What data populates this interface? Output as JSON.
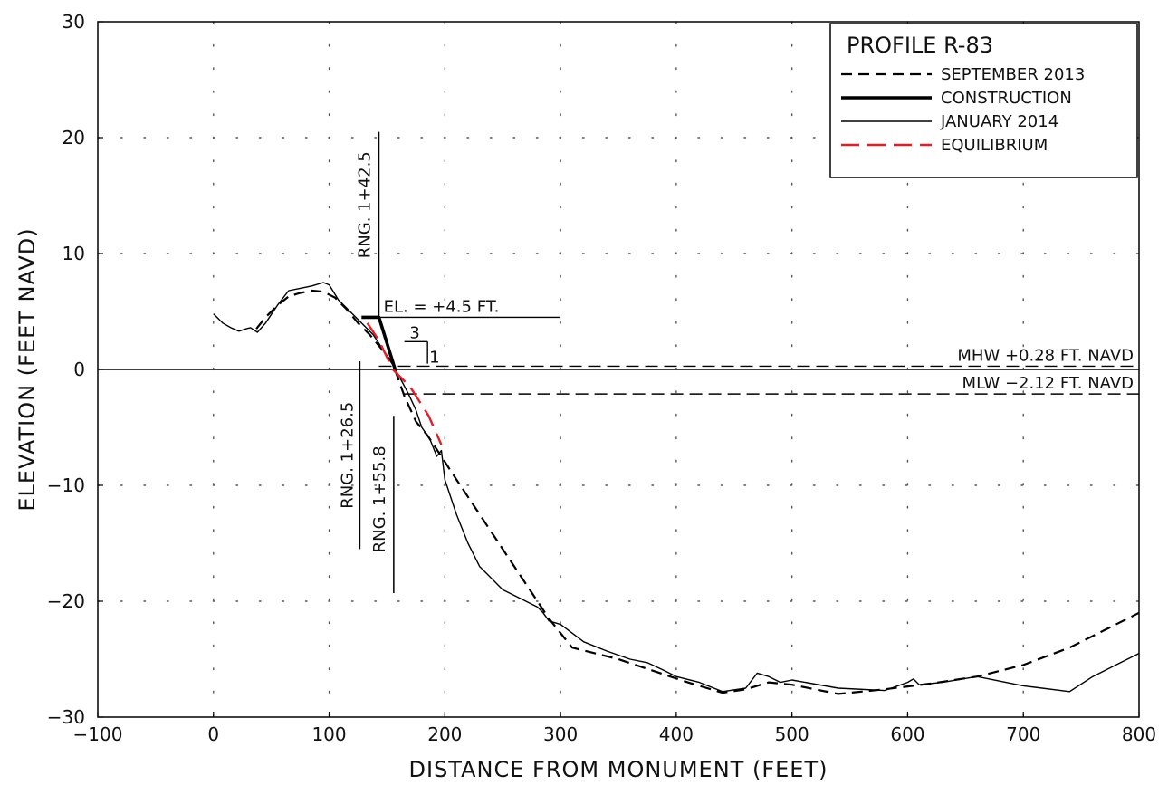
{
  "chart_data": {
    "type": "line",
    "title": "PROFILE R-83",
    "xlabel": "DISTANCE FROM MONUMENT (FEET)",
    "ylabel": "ELEVATION (FEET NAVD)",
    "xlim": [
      -100,
      800
    ],
    "ylim": [
      -30,
      30
    ],
    "xticks": [
      -100,
      0,
      100,
      200,
      300,
      400,
      500,
      600,
      700,
      800
    ],
    "yticks": [
      -30,
      -20,
      -10,
      0,
      10,
      20,
      30
    ],
    "xtick_labels": [
      "−100",
      "0",
      "100",
      "200",
      "300",
      "400",
      "500",
      "600",
      "700",
      "800"
    ],
    "ytick_labels": [
      "−30",
      "−20",
      "−10",
      "0",
      "10",
      "20",
      "30"
    ],
    "grid": "dotted",
    "legend_position": "top-right",
    "series": [
      {
        "name": "SEPTEMBER 2013",
        "color": "#000000",
        "style": "dashed",
        "x": [
          37,
          45,
          55,
          65,
          75,
          85,
          95,
          105,
          115,
          125,
          135,
          145,
          155,
          165,
          175,
          185,
          195,
          210,
          230,
          250,
          270,
          290,
          310,
          330,
          350,
          380,
          410,
          440,
          460,
          480,
          500,
          540,
          580,
          620,
          660,
          700,
          740,
          770,
          800
        ],
        "y": [
          3.5,
          4.5,
          5.5,
          6.3,
          6.6,
          6.8,
          6.7,
          6.2,
          5.2,
          4.0,
          3.0,
          1.8,
          0.5,
          -2.3,
          -4.5,
          -5.7,
          -7.2,
          -9.5,
          -12.5,
          -15.5,
          -18.5,
          -21.5,
          -24.0,
          -24.5,
          -25.0,
          -26.0,
          -27.0,
          -27.9,
          -27.6,
          -27.0,
          -27.2,
          -28.0,
          -27.6,
          -27.1,
          -26.5,
          -25.5,
          -24.0,
          -22.5,
          -21.0
        ]
      },
      {
        "name": "CONSTRUCTION",
        "color": "#000000",
        "style": "thick",
        "x": [
          128,
          143,
          157
        ],
        "y": [
          4.5,
          4.5,
          0
        ]
      },
      {
        "name": "JANUARY 2014",
        "color": "#000000",
        "style": "solid",
        "x": [
          0,
          8,
          15,
          22,
          28,
          32,
          38,
          45,
          55,
          65,
          75,
          85,
          95,
          100,
          108,
          118,
          128,
          138,
          148,
          155,
          160,
          168,
          175,
          180,
          187,
          193,
          197,
          200,
          210,
          220,
          230,
          250,
          270,
          280,
          285,
          290,
          300,
          320,
          340,
          360,
          375,
          390,
          400,
          420,
          440,
          460,
          470,
          480,
          490,
          500,
          540,
          580,
          600,
          605,
          610,
          630,
          660,
          700,
          740,
          760,
          780,
          800
        ],
        "y": [
          4.8,
          4.0,
          3.6,
          3.3,
          3.5,
          3.6,
          3.2,
          4.0,
          5.5,
          6.8,
          7.0,
          7.2,
          7.5,
          7.3,
          6.0,
          5.0,
          4.0,
          3.0,
          1.5,
          0.4,
          -0.5,
          -2.0,
          -3.5,
          -5.0,
          -6.0,
          -7.5,
          -7.0,
          -9.5,
          -12.5,
          -15.0,
          -17.0,
          -19.0,
          -20.0,
          -20.5,
          -21.0,
          -21.7,
          -22.0,
          -23.5,
          -24.3,
          -25.0,
          -25.3,
          -26.0,
          -26.5,
          -27.0,
          -27.8,
          -27.5,
          -26.2,
          -26.5,
          -27.0,
          -26.8,
          -27.5,
          -27.7,
          -27.0,
          -26.7,
          -27.2,
          -27.0,
          -26.5,
          -27.3,
          -27.8,
          -26.5,
          -25.5,
          -24.5
        ]
      },
      {
        "name": "EQUILIBRIUM",
        "color": "#e0202a",
        "style": "long-dashed",
        "x": [
          133,
          143,
          155,
          170,
          186,
          197
        ],
        "y": [
          4.0,
          2.5,
          0.0,
          -1.5,
          -4.0,
          -6.5
        ]
      }
    ],
    "annotations": [
      {
        "text": "RNG. 1+42.5",
        "x": 143
      },
      {
        "text": "RNG. 1+26.5",
        "x": 126.5
      },
      {
        "text": "RNG. 1+55.8",
        "x": 155.8
      },
      {
        "text": "EL. = +4.5 FT.",
        "y": 4.5
      },
      {
        "text": "3"
      },
      {
        "text": "1"
      },
      {
        "text": "MHW +0.28 FT. NAVD",
        "y": 0.28
      },
      {
        "text": "MLW −2.12 FT. NAVD",
        "y": -2.12
      }
    ]
  }
}
